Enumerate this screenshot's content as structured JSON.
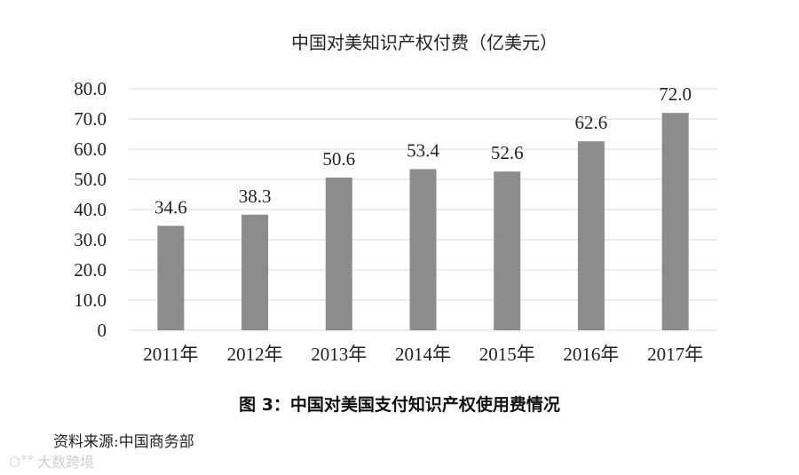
{
  "chart_data": {
    "type": "bar",
    "title": "中国对美知识产权付费（亿美元）",
    "categories": [
      "2011年",
      "2012年",
      "2013年",
      "2014年",
      "2015年",
      "2016年",
      "2017年"
    ],
    "values": [
      34.6,
      38.3,
      50.6,
      53.4,
      52.6,
      62.6,
      72.0
    ],
    "value_labels": [
      "34.6",
      "38.3",
      "50.6",
      "53.4",
      "52.6",
      "62.6",
      "72.0"
    ],
    "ylim": [
      0,
      80
    ],
    "yticks": [
      "0",
      "10.0",
      "20.0",
      "30.0",
      "40.0",
      "50.0",
      "60.0",
      "70.0",
      "80.0"
    ],
    "xlabel": "",
    "ylabel": "",
    "grid": true,
    "bar_color": "#8c8c8e",
    "grid_color": "#d9d9d9"
  },
  "caption": "图 3：中国对美国支付知识产权使用费情况",
  "source": "资料来源:中国商务部",
  "watermark": {
    "icon": "wechat-logo-icon",
    "text": "大数跨境"
  }
}
